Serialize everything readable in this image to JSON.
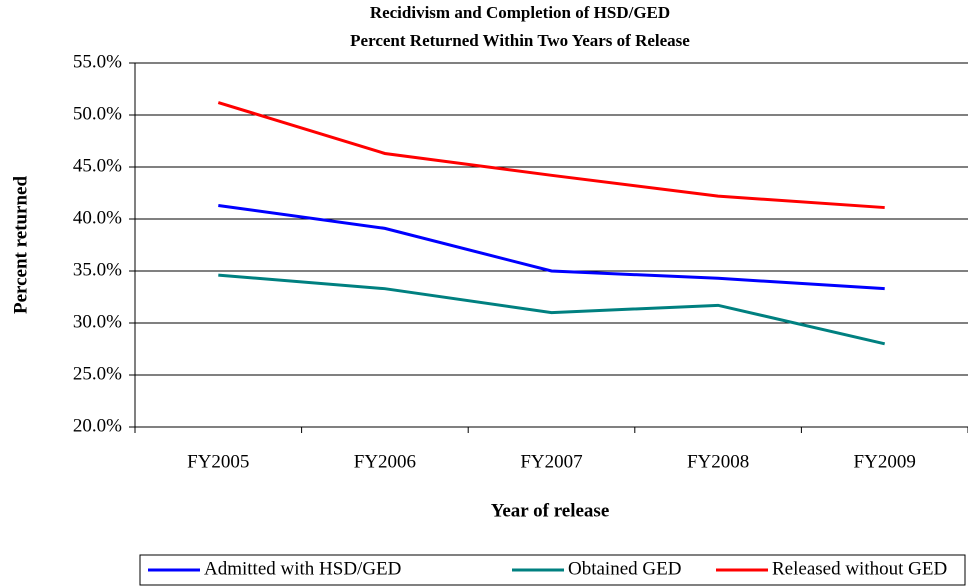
{
  "chart_data": {
    "type": "line",
    "title": "Recidivism and Completion of HSD/GED",
    "subtitle": "Percent Returned Within Two Years of Release",
    "x_label": "Year of release",
    "y_label": "Percent returned",
    "categories": [
      "FY2005",
      "FY2006",
      "FY2007",
      "FY2008",
      "FY2009"
    ],
    "series": [
      {
        "name": "Admitted with HSD/GED",
        "color": "#0000ff",
        "values": [
          41.3,
          39.1,
          35.0,
          34.3,
          33.3
        ]
      },
      {
        "name": "Obtained GED",
        "color": "#008080",
        "values": [
          34.6,
          33.3,
          31.0,
          31.7,
          28.0
        ]
      },
      {
        "name": "Released without GED",
        "color": "#ff0000",
        "values": [
          51.2,
          46.3,
          44.2,
          42.2,
          41.1
        ]
      }
    ],
    "ylim": [
      20,
      55
    ],
    "yticks": [
      {
        "value": 20,
        "label": "20.0%"
      },
      {
        "value": 25,
        "label": "25.0%"
      },
      {
        "value": 30,
        "label": "30.0%"
      },
      {
        "value": 35,
        "label": "35.0%"
      },
      {
        "value": 40,
        "label": "40.0%"
      },
      {
        "value": 45,
        "label": "45.0%"
      },
      {
        "value": 50,
        "label": "50.0%"
      },
      {
        "value": 55,
        "label": "55.0%"
      }
    ],
    "grid": true,
    "legend": "bottom"
  }
}
